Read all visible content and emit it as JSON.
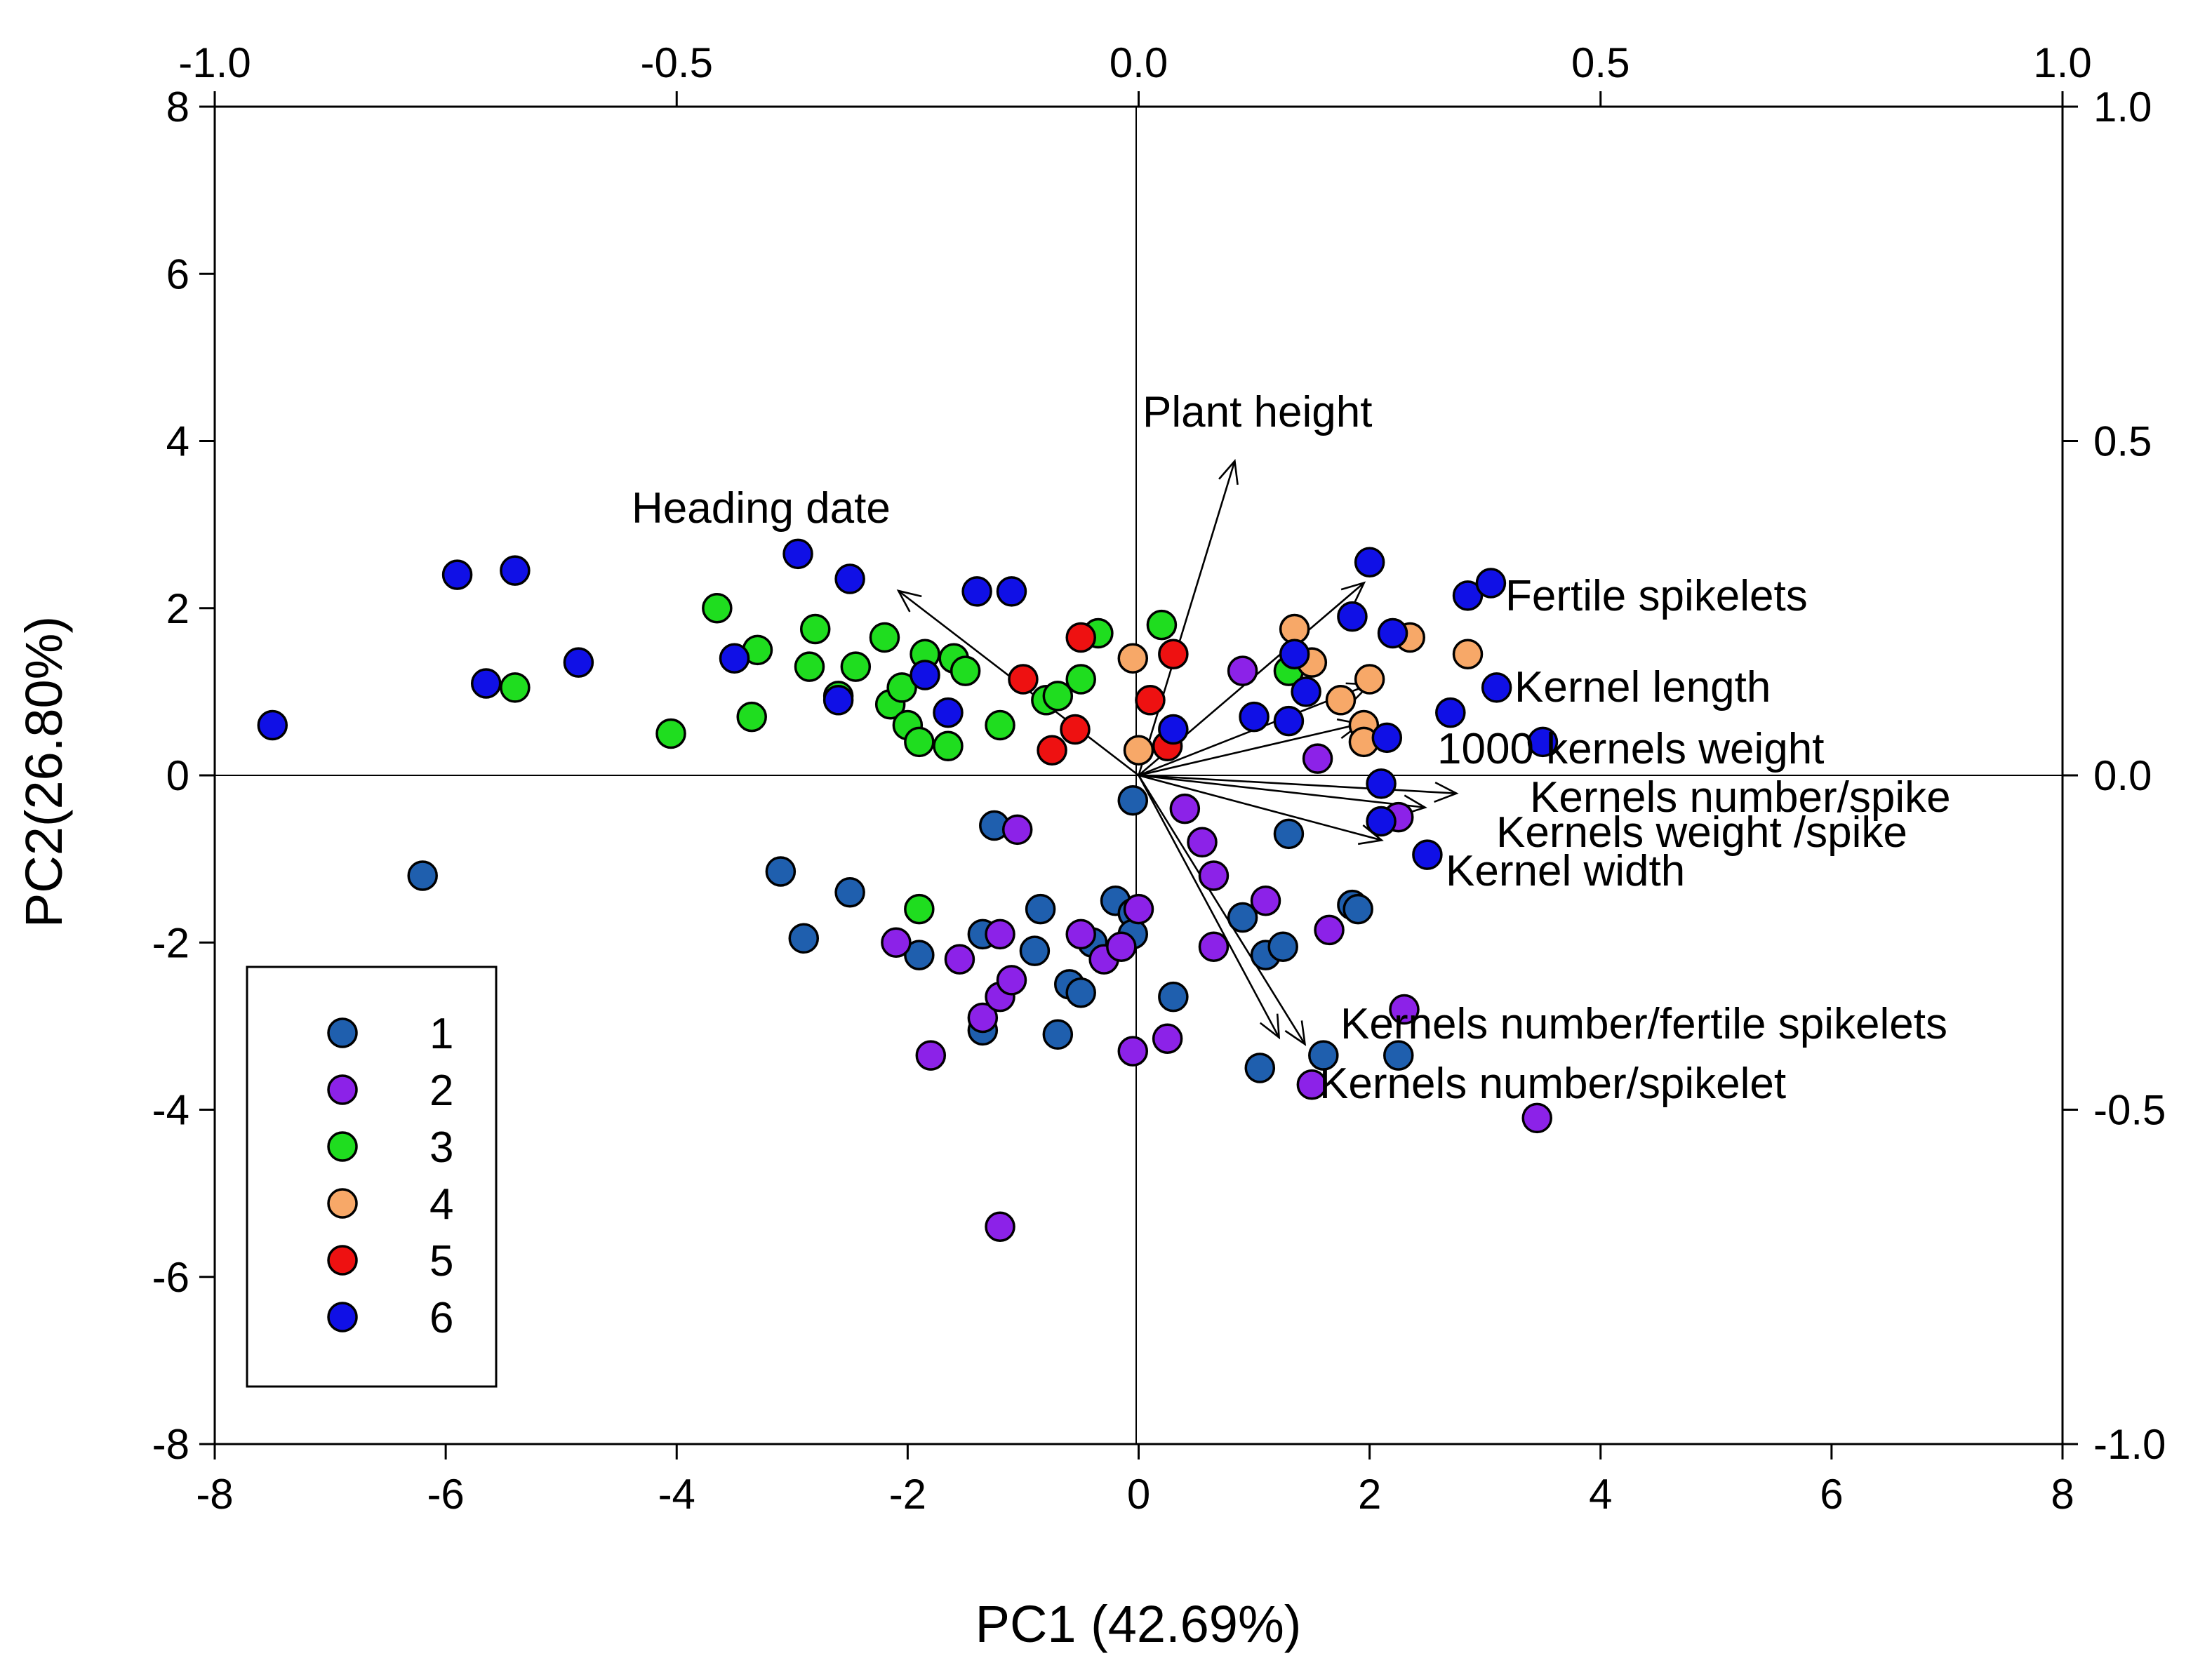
{
  "chart_data": {
    "type": "scatter",
    "subtype": "pca-biplot",
    "xlabel": "PC1 (42.69%)",
    "ylabel": "PC2(26.80%)",
    "xlim": [
      -8,
      8
    ],
    "ylim": [
      -8,
      8
    ],
    "x_ticks": [
      "-8",
      "-6",
      "-4",
      "-2",
      "0",
      "2",
      "4",
      "6",
      "8"
    ],
    "y_ticks": [
      "-8",
      "-6",
      "-4",
      "-2",
      "0",
      "2",
      "4",
      "6",
      "8"
    ],
    "top_lim": [
      -1.0,
      1.0
    ],
    "right_lim": [
      -1.0,
      1.0
    ],
    "top_ticks": [
      "-1.0",
      "-0.5",
      "0.0",
      "0.5",
      "1.0"
    ],
    "right_ticks": [
      "-1.0",
      "-0.5",
      "0.0",
      "0.5",
      "1.0"
    ],
    "colors": {
      "1": "#1f5fae",
      "2": "#8c22e8",
      "3": "#1fdd1f",
      "4": "#f7a868",
      "5": "#ee1111",
      "6": "#1010e6"
    },
    "legend": {
      "position": "bottom-left",
      "entries": [
        "1",
        "2",
        "3",
        "4",
        "5",
        "6"
      ]
    },
    "series": [
      {
        "name": "1",
        "points": [
          [
            -6.2,
            -1.2
          ],
          [
            -3.1,
            -1.15
          ],
          [
            -2.9,
            -1.95
          ],
          [
            -2.5,
            -1.4
          ],
          [
            -1.9,
            -2.15
          ],
          [
            -1.35,
            -1.9
          ],
          [
            -1.25,
            -0.6
          ],
          [
            -1.35,
            -3.05
          ],
          [
            -0.85,
            -1.6
          ],
          [
            -0.9,
            -2.1
          ],
          [
            -0.7,
            -3.1
          ],
          [
            -0.6,
            -2.5
          ],
          [
            -0.5,
            -2.6
          ],
          [
            -0.4,
            -2.0
          ],
          [
            -0.2,
            -1.5
          ],
          [
            -0.05,
            -1.65
          ],
          [
            -0.05,
            -1.9
          ],
          [
            -0.05,
            -0.3
          ],
          [
            0.3,
            -2.65
          ],
          [
            0.9,
            -1.7
          ],
          [
            1.1,
            -2.15
          ],
          [
            1.25,
            -2.05
          ],
          [
            1.3,
            -0.7
          ],
          [
            1.05,
            -3.5
          ],
          [
            1.6,
            -3.35
          ],
          [
            1.85,
            -1.55
          ],
          [
            1.9,
            -1.6
          ],
          [
            2.25,
            -3.35
          ]
        ]
      },
      {
        "name": "2",
        "points": [
          [
            -2.1,
            -2.0
          ],
          [
            -1.8,
            -3.35
          ],
          [
            -1.55,
            -2.2
          ],
          [
            -1.35,
            -2.9
          ],
          [
            -1.2,
            -1.9
          ],
          [
            -1.2,
            -2.65
          ],
          [
            -1.1,
            -2.45
          ],
          [
            -1.05,
            -0.65
          ],
          [
            -1.2,
            -5.4
          ],
          [
            -0.5,
            -1.9
          ],
          [
            -0.3,
            -2.2
          ],
          [
            -0.15,
            -2.05
          ],
          [
            -0.05,
            -3.3
          ],
          [
            0.0,
            -1.6
          ],
          [
            0.25,
            -3.15
          ],
          [
            0.4,
            -0.4
          ],
          [
            0.55,
            -0.8
          ],
          [
            0.65,
            -1.2
          ],
          [
            0.65,
            -2.05
          ],
          [
            1.1,
            -1.5
          ],
          [
            0.9,
            1.25
          ],
          [
            1.55,
            0.2
          ],
          [
            1.65,
            -1.85
          ],
          [
            2.25,
            -0.5
          ],
          [
            2.3,
            -2.8
          ],
          [
            1.5,
            -3.7
          ],
          [
            3.45,
            -4.1
          ]
        ]
      },
      {
        "name": "3",
        "points": [
          [
            -5.4,
            1.05
          ],
          [
            -4.05,
            0.5
          ],
          [
            -3.65,
            2.0
          ],
          [
            -3.35,
            0.7
          ],
          [
            -3.3,
            1.5
          ],
          [
            -2.85,
            1.3
          ],
          [
            -2.8,
            1.75
          ],
          [
            -2.6,
            0.95
          ],
          [
            -2.45,
            1.3
          ],
          [
            -2.2,
            1.65
          ],
          [
            -2.15,
            0.85
          ],
          [
            -2.05,
            1.05
          ],
          [
            -2.0,
            0.6
          ],
          [
            -1.9,
            0.4
          ],
          [
            -1.85,
            1.45
          ],
          [
            -1.65,
            0.35
          ],
          [
            -1.6,
            1.4
          ],
          [
            -1.5,
            1.25
          ],
          [
            -1.2,
            0.6
          ],
          [
            -1.9,
            -1.6
          ],
          [
            -0.8,
            0.9
          ],
          [
            -0.7,
            0.95
          ],
          [
            -0.5,
            1.15
          ],
          [
            -0.35,
            1.7
          ],
          [
            0.2,
            1.8
          ],
          [
            1.3,
            1.25
          ]
        ]
      },
      {
        "name": "4",
        "points": [
          [
            -0.05,
            1.4
          ],
          [
            0.0,
            0.3
          ],
          [
            1.35,
            1.75
          ],
          [
            1.5,
            1.35
          ],
          [
            1.75,
            0.9
          ],
          [
            1.95,
            0.6
          ],
          [
            1.95,
            0.4
          ],
          [
            2.0,
            1.15
          ],
          [
            2.35,
            1.65
          ],
          [
            2.85,
            1.45
          ]
        ]
      },
      {
        "name": "5",
        "points": [
          [
            -1.0,
            1.15
          ],
          [
            -0.75,
            0.3
          ],
          [
            -0.55,
            0.55
          ],
          [
            -0.5,
            1.65
          ],
          [
            0.1,
            0.9
          ],
          [
            0.25,
            0.35
          ],
          [
            0.3,
            1.45
          ]
        ]
      },
      {
        "name": "6",
        "points": [
          [
            -7.5,
            0.6
          ],
          [
            -5.9,
            2.4
          ],
          [
            -5.65,
            1.1
          ],
          [
            -5.4,
            2.45
          ],
          [
            -4.85,
            1.35
          ],
          [
            -3.5,
            1.4
          ],
          [
            -2.95,
            2.65
          ],
          [
            -2.6,
            0.9
          ],
          [
            -2.5,
            2.35
          ],
          [
            -1.85,
            1.2
          ],
          [
            -1.65,
            0.75
          ],
          [
            -1.4,
            2.2
          ],
          [
            -1.1,
            2.2
          ],
          [
            0.3,
            0.55
          ],
          [
            1.0,
            0.7
          ],
          [
            1.3,
            0.65
          ],
          [
            1.35,
            1.45
          ],
          [
            1.45,
            1.0
          ],
          [
            1.85,
            1.9
          ],
          [
            2.0,
            2.55
          ],
          [
            2.15,
            0.45
          ],
          [
            2.1,
            -0.1
          ],
          [
            2.1,
            -0.55
          ],
          [
            2.2,
            1.7
          ],
          [
            2.5,
            -0.95
          ],
          [
            2.7,
            0.75
          ],
          [
            2.85,
            2.15
          ],
          [
            3.05,
            2.3
          ],
          [
            3.1,
            1.05
          ],
          [
            3.5,
            0.4
          ]
        ]
      }
    ],
    "vectors": [
      {
        "label": "Plant height",
        "x": 0.104,
        "y": 0.47
      },
      {
        "label": "Heading date",
        "x": -0.26,
        "y": 0.276
      },
      {
        "label": "Fertile spikelets",
        "x": 0.244,
        "y": 0.288
      },
      {
        "label": "Kernel length",
        "x": 0.25,
        "y": 0.136
      },
      {
        "label": "1000 kernels weight",
        "x": 0.24,
        "y": 0.077
      },
      {
        "label": "Kernels number/spike",
        "x": 0.344,
        "y": -0.027
      },
      {
        "label": "Kernels weight /spike",
        "x": 0.31,
        "y": -0.048
      },
      {
        "label": "Kernel width",
        "x": 0.263,
        "y": -0.097
      },
      {
        "label": "Kernels number/fertile spikelets",
        "x": 0.18,
        "y": -0.402
      },
      {
        "label": "Kernels number/spikelet",
        "x": 0.152,
        "y": -0.392
      }
    ]
  }
}
